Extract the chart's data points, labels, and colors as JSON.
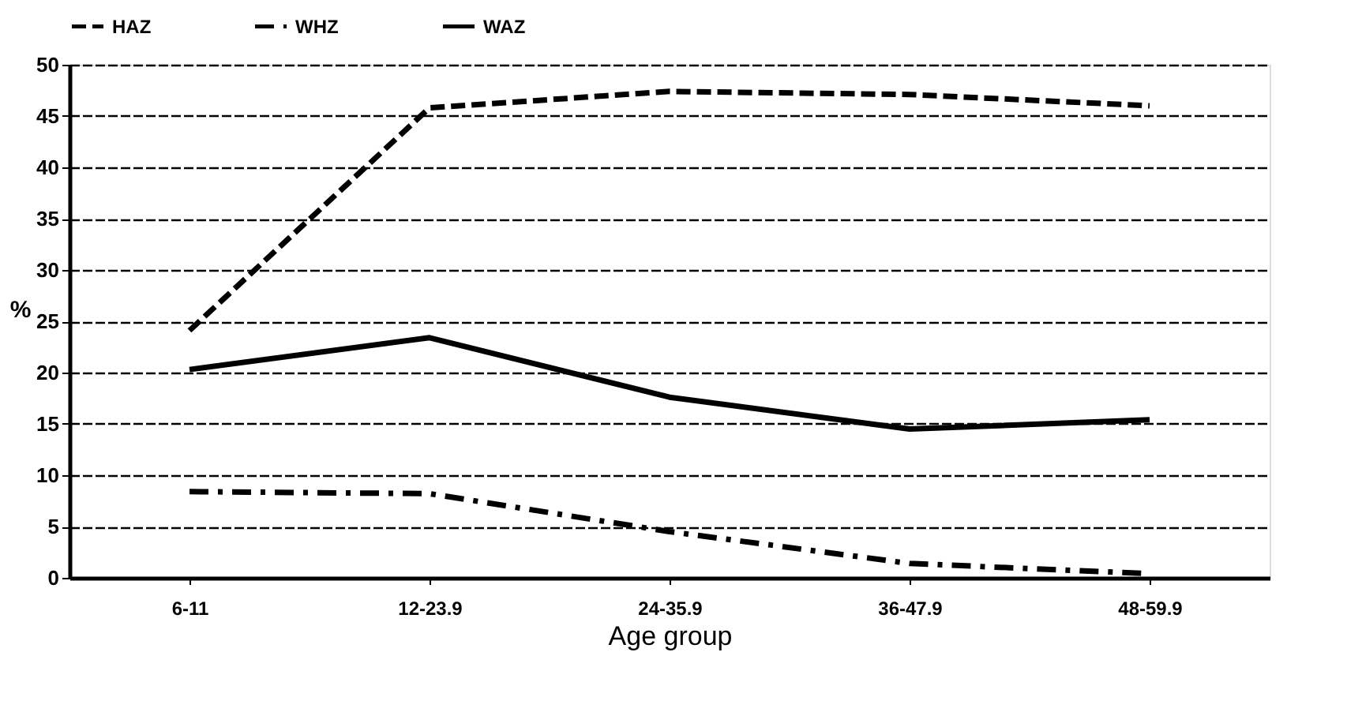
{
  "chart_data": {
    "type": "line",
    "xlabel": "Age group",
    "ylabel": "%",
    "categories": [
      "6-11",
      "12-23.9",
      "24-35.9",
      "36-47.9",
      "48-59.9"
    ],
    "series": [
      {
        "name": "HAZ",
        "color": "#000000",
        "line_style": "dashed",
        "values": [
          24.1,
          45.8,
          47.4,
          47.1,
          46.0
        ]
      },
      {
        "name": "WHZ",
        "color": "#000000",
        "line_style": "dashdot",
        "values": [
          8.4,
          8.2,
          4.5,
          1.4,
          0.4
        ]
      },
      {
        "name": "WAZ",
        "color": "#000000",
        "line_style": "solid",
        "values": [
          20.3,
          23.4,
          17.6,
          14.5,
          15.4
        ]
      }
    ],
    "ylim": [
      0,
      50
    ],
    "yticks": [
      0,
      5,
      10,
      15,
      20,
      25,
      30,
      35,
      40,
      45,
      50
    ],
    "grid": "y",
    "legend": "top",
    "marker": "none"
  }
}
